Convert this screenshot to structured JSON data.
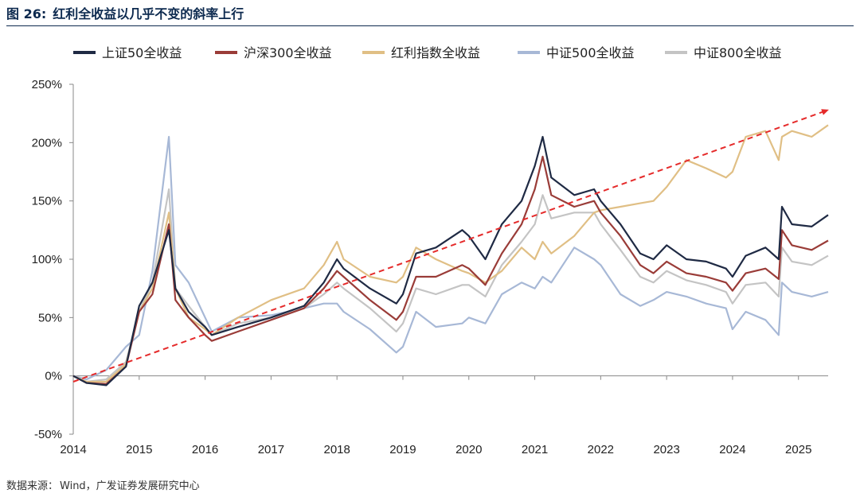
{
  "figure": {
    "label": "图 26:",
    "title": "红利全收益以几乎不变的斜率上行"
  },
  "source": {
    "label": "数据来源：",
    "value": "Wind，广发证券发展研究中心"
  },
  "colors": {
    "sz50": "#1f2a44",
    "hs300": "#9a3c38",
    "dividend": "#e0bf85",
    "zz500": "#a7b8d6",
    "zz800": "#c4c4c4",
    "trend": "#e52b2b"
  },
  "chart_data": {
    "type": "line",
    "x_type": "year",
    "x_ticks": [
      "2014",
      "2015",
      "2016",
      "2017",
      "2018",
      "2019",
      "2020",
      "2021",
      "2022",
      "2023",
      "2024",
      "2025"
    ],
    "ylim": [
      -50,
      250
    ],
    "y_ticks": [
      -50,
      0,
      50,
      100,
      150,
      200,
      250
    ],
    "y_tick_labels": [
      "-50%",
      "0%",
      "50%",
      "100%",
      "150%",
      "200%",
      "250%"
    ],
    "legend_position": "top",
    "grid": false,
    "series": [
      {
        "name": "上证50全收益",
        "color_key": "sz50",
        "points": [
          [
            2014.0,
            0
          ],
          [
            2014.2,
            -6
          ],
          [
            2014.5,
            -8
          ],
          [
            2014.8,
            8
          ],
          [
            2015.0,
            60
          ],
          [
            2015.2,
            80
          ],
          [
            2015.45,
            125
          ],
          [
            2015.55,
            75
          ],
          [
            2015.75,
            55
          ],
          [
            2016.0,
            42
          ],
          [
            2016.1,
            35
          ],
          [
            2016.5,
            42
          ],
          [
            2017.0,
            50
          ],
          [
            2017.5,
            60
          ],
          [
            2017.8,
            80
          ],
          [
            2018.0,
            100
          ],
          [
            2018.1,
            92
          ],
          [
            2018.5,
            75
          ],
          [
            2018.9,
            62
          ],
          [
            2019.0,
            70
          ],
          [
            2019.2,
            105
          ],
          [
            2019.5,
            110
          ],
          [
            2019.9,
            125
          ],
          [
            2020.0,
            120
          ],
          [
            2020.25,
            100
          ],
          [
            2020.5,
            130
          ],
          [
            2020.8,
            150
          ],
          [
            2021.0,
            180
          ],
          [
            2021.12,
            205
          ],
          [
            2021.25,
            170
          ],
          [
            2021.6,
            155
          ],
          [
            2021.9,
            160
          ],
          [
            2022.0,
            150
          ],
          [
            2022.3,
            130
          ],
          [
            2022.6,
            105
          ],
          [
            2022.8,
            100
          ],
          [
            2023.0,
            112
          ],
          [
            2023.3,
            100
          ],
          [
            2023.6,
            98
          ],
          [
            2023.9,
            92
          ],
          [
            2024.0,
            85
          ],
          [
            2024.2,
            103
          ],
          [
            2024.5,
            110
          ],
          [
            2024.7,
            100
          ],
          [
            2024.75,
            145
          ],
          [
            2024.9,
            130
          ],
          [
            2025.2,
            128
          ],
          [
            2025.45,
            138
          ]
        ]
      },
      {
        "name": "沪深300全收益",
        "color_key": "hs300",
        "points": [
          [
            2014.0,
            0
          ],
          [
            2014.2,
            -6
          ],
          [
            2014.5,
            -7
          ],
          [
            2014.8,
            8
          ],
          [
            2015.0,
            55
          ],
          [
            2015.2,
            70
          ],
          [
            2015.45,
            130
          ],
          [
            2015.55,
            65
          ],
          [
            2015.75,
            50
          ],
          [
            2016.0,
            35
          ],
          [
            2016.1,
            30
          ],
          [
            2016.5,
            38
          ],
          [
            2017.0,
            48
          ],
          [
            2017.5,
            58
          ],
          [
            2017.8,
            75
          ],
          [
            2018.0,
            90
          ],
          [
            2018.1,
            85
          ],
          [
            2018.5,
            65
          ],
          [
            2018.9,
            48
          ],
          [
            2019.0,
            55
          ],
          [
            2019.2,
            85
          ],
          [
            2019.5,
            85
          ],
          [
            2019.9,
            95
          ],
          [
            2020.0,
            92
          ],
          [
            2020.25,
            78
          ],
          [
            2020.5,
            105
          ],
          [
            2020.8,
            130
          ],
          [
            2021.0,
            160
          ],
          [
            2021.12,
            188
          ],
          [
            2021.25,
            155
          ],
          [
            2021.6,
            145
          ],
          [
            2021.9,
            150
          ],
          [
            2022.0,
            140
          ],
          [
            2022.3,
            120
          ],
          [
            2022.6,
            95
          ],
          [
            2022.8,
            88
          ],
          [
            2023.0,
            98
          ],
          [
            2023.3,
            88
          ],
          [
            2023.6,
            85
          ],
          [
            2023.9,
            80
          ],
          [
            2024.0,
            73
          ],
          [
            2024.2,
            88
          ],
          [
            2024.5,
            92
          ],
          [
            2024.7,
            83
          ],
          [
            2024.75,
            125
          ],
          [
            2024.9,
            112
          ],
          [
            2025.2,
            108
          ],
          [
            2025.45,
            116
          ]
        ]
      },
      {
        "name": "红利指数全收益",
        "color_key": "dividend",
        "points": [
          [
            2014.0,
            0
          ],
          [
            2014.2,
            -5
          ],
          [
            2014.5,
            -5
          ],
          [
            2014.8,
            10
          ],
          [
            2015.0,
            55
          ],
          [
            2015.2,
            75
          ],
          [
            2015.45,
            140
          ],
          [
            2015.55,
            75
          ],
          [
            2015.75,
            50
          ],
          [
            2016.0,
            40
          ],
          [
            2016.1,
            35
          ],
          [
            2016.5,
            50
          ],
          [
            2017.0,
            65
          ],
          [
            2017.5,
            75
          ],
          [
            2017.8,
            95
          ],
          [
            2018.0,
            115
          ],
          [
            2018.1,
            100
          ],
          [
            2018.5,
            85
          ],
          [
            2018.9,
            80
          ],
          [
            2019.0,
            85
          ],
          [
            2019.2,
            110
          ],
          [
            2019.5,
            100
          ],
          [
            2019.9,
            90
          ],
          [
            2020.0,
            88
          ],
          [
            2020.25,
            80
          ],
          [
            2020.5,
            90
          ],
          [
            2020.8,
            110
          ],
          [
            2021.0,
            100
          ],
          [
            2021.12,
            115
          ],
          [
            2021.25,
            105
          ],
          [
            2021.6,
            120
          ],
          [
            2021.9,
            140
          ],
          [
            2022.0,
            142
          ],
          [
            2022.3,
            145
          ],
          [
            2022.6,
            148
          ],
          [
            2022.8,
            150
          ],
          [
            2023.0,
            162
          ],
          [
            2023.3,
            185
          ],
          [
            2023.6,
            178
          ],
          [
            2023.9,
            170
          ],
          [
            2024.0,
            175
          ],
          [
            2024.2,
            205
          ],
          [
            2024.5,
            210
          ],
          [
            2024.7,
            185
          ],
          [
            2024.75,
            205
          ],
          [
            2024.9,
            210
          ],
          [
            2025.2,
            205
          ],
          [
            2025.45,
            215
          ]
        ]
      },
      {
        "name": "中证500全收益",
        "color_key": "zz500",
        "points": [
          [
            2014.0,
            0
          ],
          [
            2014.2,
            -3
          ],
          [
            2014.5,
            5
          ],
          [
            2014.8,
            25
          ],
          [
            2015.0,
            35
          ],
          [
            2015.2,
            90
          ],
          [
            2015.45,
            205
          ],
          [
            2015.55,
            95
          ],
          [
            2015.75,
            80
          ],
          [
            2016.0,
            50
          ],
          [
            2016.1,
            38
          ],
          [
            2016.5,
            50
          ],
          [
            2017.0,
            52
          ],
          [
            2017.5,
            58
          ],
          [
            2017.8,
            62
          ],
          [
            2018.0,
            62
          ],
          [
            2018.1,
            55
          ],
          [
            2018.5,
            40
          ],
          [
            2018.9,
            20
          ],
          [
            2019.0,
            25
          ],
          [
            2019.2,
            55
          ],
          [
            2019.5,
            42
          ],
          [
            2019.9,
            45
          ],
          [
            2020.0,
            50
          ],
          [
            2020.25,
            45
          ],
          [
            2020.5,
            70
          ],
          [
            2020.8,
            80
          ],
          [
            2021.0,
            75
          ],
          [
            2021.12,
            85
          ],
          [
            2021.25,
            80
          ],
          [
            2021.6,
            110
          ],
          [
            2021.9,
            100
          ],
          [
            2022.0,
            95
          ],
          [
            2022.3,
            70
          ],
          [
            2022.6,
            60
          ],
          [
            2022.8,
            65
          ],
          [
            2023.0,
            72
          ],
          [
            2023.3,
            68
          ],
          [
            2023.6,
            62
          ],
          [
            2023.9,
            58
          ],
          [
            2024.0,
            40
          ],
          [
            2024.2,
            55
          ],
          [
            2024.5,
            48
          ],
          [
            2024.7,
            35
          ],
          [
            2024.75,
            80
          ],
          [
            2024.9,
            72
          ],
          [
            2025.2,
            68
          ],
          [
            2025.45,
            72
          ]
        ]
      },
      {
        "name": "中证800全收益",
        "color_key": "zz800",
        "points": [
          [
            2014.0,
            0
          ],
          [
            2014.2,
            -5
          ],
          [
            2014.5,
            -3
          ],
          [
            2014.8,
            12
          ],
          [
            2015.0,
            55
          ],
          [
            2015.2,
            80
          ],
          [
            2015.45,
            160
          ],
          [
            2015.55,
            75
          ],
          [
            2015.75,
            60
          ],
          [
            2016.0,
            42
          ],
          [
            2016.1,
            35
          ],
          [
            2016.5,
            45
          ],
          [
            2017.0,
            50
          ],
          [
            2017.5,
            58
          ],
          [
            2017.8,
            70
          ],
          [
            2018.0,
            80
          ],
          [
            2018.1,
            75
          ],
          [
            2018.5,
            58
          ],
          [
            2018.9,
            38
          ],
          [
            2019.0,
            45
          ],
          [
            2019.2,
            75
          ],
          [
            2019.5,
            70
          ],
          [
            2019.9,
            78
          ],
          [
            2020.0,
            78
          ],
          [
            2020.25,
            68
          ],
          [
            2020.5,
            95
          ],
          [
            2020.8,
            115
          ],
          [
            2021.0,
            130
          ],
          [
            2021.12,
            155
          ],
          [
            2021.25,
            135
          ],
          [
            2021.6,
            140
          ],
          [
            2021.9,
            140
          ],
          [
            2022.0,
            130
          ],
          [
            2022.3,
            108
          ],
          [
            2022.6,
            85
          ],
          [
            2022.8,
            80
          ],
          [
            2023.0,
            90
          ],
          [
            2023.3,
            82
          ],
          [
            2023.6,
            78
          ],
          [
            2023.9,
            72
          ],
          [
            2024.0,
            62
          ],
          [
            2024.2,
            78
          ],
          [
            2024.5,
            80
          ],
          [
            2024.7,
            68
          ],
          [
            2024.75,
            110
          ],
          [
            2024.9,
            98
          ],
          [
            2025.2,
            95
          ],
          [
            2025.45,
            103
          ]
        ]
      }
    ],
    "trend_arrow": {
      "from": [
        2014.0,
        -5
      ],
      "to": [
        2025.45,
        228
      ]
    }
  }
}
